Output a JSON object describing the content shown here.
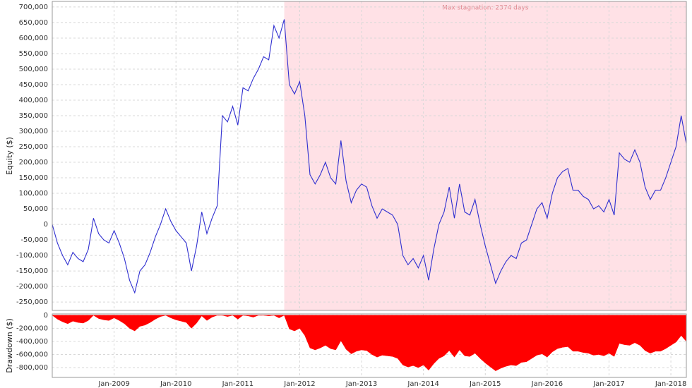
{
  "chart_data": [
    {
      "type": "line",
      "y_label": "Equity ($)",
      "x": [
        "2008-01",
        "2008-02",
        "2008-03",
        "2008-04",
        "2008-05",
        "2008-06",
        "2008-07",
        "2008-08",
        "2008-09",
        "2008-10",
        "2008-11",
        "2008-12",
        "2009-01",
        "2009-02",
        "2009-03",
        "2009-04",
        "2009-05",
        "2009-06",
        "2009-07",
        "2009-08",
        "2009-09",
        "2009-10",
        "2009-11",
        "2009-12",
        "2010-01",
        "2010-02",
        "2010-03",
        "2010-04",
        "2010-05",
        "2010-06",
        "2010-07",
        "2010-08",
        "2010-09",
        "2010-10",
        "2010-11",
        "2010-12",
        "2011-01",
        "2011-02",
        "2011-03",
        "2011-04",
        "2011-05",
        "2011-06",
        "2011-07",
        "2011-08",
        "2011-09",
        "2011-10",
        "2011-11",
        "2011-12",
        "2012-01",
        "2012-02",
        "2012-03",
        "2012-04",
        "2012-05",
        "2012-06",
        "2012-07",
        "2012-08",
        "2012-09",
        "2012-10",
        "2012-11",
        "2012-12",
        "2013-01",
        "2013-02",
        "2013-03",
        "2013-04",
        "2013-05",
        "2013-06",
        "2013-07",
        "2013-08",
        "2013-09",
        "2013-10",
        "2013-11",
        "2013-12",
        "2014-01",
        "2014-02",
        "2014-03",
        "2014-04",
        "2014-05",
        "2014-06",
        "2014-07",
        "2014-08",
        "2014-09",
        "2014-10",
        "2014-11",
        "2014-12",
        "2015-01",
        "2015-02",
        "2015-03",
        "2015-04",
        "2015-05",
        "2015-06",
        "2015-07",
        "2015-08",
        "2015-09",
        "2015-10",
        "2015-11",
        "2015-12",
        "2016-01",
        "2016-02",
        "2016-03",
        "2016-04",
        "2016-05",
        "2016-06",
        "2016-07",
        "2016-08",
        "2016-09",
        "2016-10",
        "2016-11",
        "2016-12",
        "2017-01",
        "2017-02",
        "2017-03",
        "2017-04",
        "2017-05",
        "2017-06",
        "2017-07",
        "2017-08",
        "2017-09",
        "2017-10",
        "2017-11",
        "2017-12",
        "2018-01",
        "2018-02",
        "2018-03",
        "2018-04"
      ],
      "series": [
        {
          "color": "#2f2fd0",
          "values": [
            0,
            -60000,
            -100000,
            -130000,
            -90000,
            -110000,
            -120000,
            -80000,
            20000,
            -30000,
            -50000,
            -60000,
            -20000,
            -60000,
            -110000,
            -180000,
            -220000,
            -150000,
            -130000,
            -90000,
            -40000,
            0,
            50000,
            10000,
            -20000,
            -40000,
            -60000,
            -150000,
            -70000,
            40000,
            -30000,
            20000,
            60000,
            350000,
            330000,
            380000,
            320000,
            440000,
            430000,
            470000,
            500000,
            540000,
            530000,
            640000,
            600000,
            660000,
            450000,
            420000,
            460000,
            350000,
            160000,
            130000,
            160000,
            200000,
            150000,
            130000,
            270000,
            140000,
            70000,
            110000,
            130000,
            120000,
            60000,
            20000,
            50000,
            40000,
            30000,
            0,
            -100000,
            -130000,
            -110000,
            -140000,
            -100000,
            -180000,
            -80000,
            0,
            40000,
            120000,
            20000,
            130000,
            40000,
            30000,
            80000,
            0,
            -70000,
            -130000,
            -190000,
            -150000,
            -120000,
            -100000,
            -110000,
            -60000,
            -50000,
            0,
            50000,
            70000,
            20000,
            100000,
            150000,
            170000,
            180000,
            110000,
            110000,
            90000,
            80000,
            50000,
            60000,
            40000,
            80000,
            30000,
            230000,
            210000,
            200000,
            240000,
            200000,
            120000,
            80000,
            110000,
            110000,
            150000,
            200000,
            250000,
            350000,
            260000
          ]
        }
      ],
      "xlim": [
        "2008-01",
        "2018-04"
      ],
      "xticks": [
        "2009-01",
        "2010-01",
        "2011-01",
        "2012-01",
        "2013-01",
        "2014-01",
        "2015-01",
        "2016-01",
        "2017-01",
        "2018-01"
      ],
      "ylim": [
        -277000,
        718000
      ],
      "yticks": [
        {
          "value": 700000,
          "label": "700,000"
        },
        {
          "value": 650000,
          "label": "650,000"
        },
        {
          "value": 600000,
          "label": "600,000"
        },
        {
          "value": 550000,
          "label": "550,000"
        },
        {
          "value": 500000,
          "label": "500,000"
        },
        {
          "value": 450000,
          "label": "450,000"
        },
        {
          "value": 400000,
          "label": "400,000"
        },
        {
          "value": 350000,
          "label": "350,000"
        },
        {
          "value": 300000,
          "label": "300,000"
        },
        {
          "value": 250000,
          "label": "250,000"
        },
        {
          "value": 200000,
          "label": "200,000"
        },
        {
          "value": 150000,
          "label": "150,000"
        },
        {
          "value": 100000,
          "label": "100,000"
        },
        {
          "value": 50000,
          "label": "50,000"
        },
        0,
        {
          "value": -50000,
          "label": "-50,000"
        },
        {
          "value": -100000,
          "label": "-100,000"
        },
        {
          "value": -150000,
          "label": "-150,000"
        },
        {
          "value": -200000,
          "label": "-200,000"
        },
        {
          "value": -250000,
          "label": "-250,000"
        }
      ],
      "grid": true,
      "stagnation": {
        "start": "2011-10",
        "end": "2018-04",
        "label": "Max stagnation: 2374 days",
        "color": "#ffe1e6"
      }
    },
    {
      "type": "area",
      "y_label": "Drawdown ($)",
      "x": [
        "2008-01",
        "2008-02",
        "2008-03",
        "2008-04",
        "2008-05",
        "2008-06",
        "2008-07",
        "2008-08",
        "2008-09",
        "2008-10",
        "2008-11",
        "2008-12",
        "2009-01",
        "2009-02",
        "2009-03",
        "2009-04",
        "2009-05",
        "2009-06",
        "2009-07",
        "2009-08",
        "2009-09",
        "2009-10",
        "2009-11",
        "2009-12",
        "2010-01",
        "2010-02",
        "2010-03",
        "2010-04",
        "2010-05",
        "2010-06",
        "2010-07",
        "2010-08",
        "2010-09",
        "2010-10",
        "2010-11",
        "2010-12",
        "2011-01",
        "2011-02",
        "2011-03",
        "2011-04",
        "2011-05",
        "2011-06",
        "2011-07",
        "2011-08",
        "2011-09",
        "2011-10",
        "2011-11",
        "2011-12",
        "2012-01",
        "2012-02",
        "2012-03",
        "2012-04",
        "2012-05",
        "2012-06",
        "2012-07",
        "2012-08",
        "2012-09",
        "2012-10",
        "2012-11",
        "2012-12",
        "2013-01",
        "2013-02",
        "2013-03",
        "2013-04",
        "2013-05",
        "2013-06",
        "2013-07",
        "2013-08",
        "2013-09",
        "2013-10",
        "2013-11",
        "2013-12",
        "2014-01",
        "2014-02",
        "2014-03",
        "2014-04",
        "2014-05",
        "2014-06",
        "2014-07",
        "2014-08",
        "2014-09",
        "2014-10",
        "2014-11",
        "2014-12",
        "2015-01",
        "2015-02",
        "2015-03",
        "2015-04",
        "2015-05",
        "2015-06",
        "2015-07",
        "2015-08",
        "2015-09",
        "2015-10",
        "2015-11",
        "2015-12",
        "2016-01",
        "2016-02",
        "2016-03",
        "2016-04",
        "2016-05",
        "2016-06",
        "2016-07",
        "2016-08",
        "2016-09",
        "2016-10",
        "2016-11",
        "2016-12",
        "2017-01",
        "2017-02",
        "2017-03",
        "2017-04",
        "2017-05",
        "2017-06",
        "2017-07",
        "2017-08",
        "2017-09",
        "2017-10",
        "2017-11",
        "2017-12",
        "2018-01",
        "2018-02",
        "2018-03",
        "2018-04"
      ],
      "series": [
        {
          "color": "#ff0000",
          "values": [
            0,
            -60000,
            -100000,
            -130000,
            -90000,
            -110000,
            -120000,
            -80000,
            0,
            -50000,
            -70000,
            -80000,
            -40000,
            -80000,
            -130000,
            -200000,
            -240000,
            -170000,
            -150000,
            -110000,
            -60000,
            -20000,
            0,
            -40000,
            -70000,
            -90000,
            -110000,
            -200000,
            -120000,
            -10000,
            -80000,
            -30000,
            0,
            0,
            -20000,
            0,
            -60000,
            0,
            -10000,
            -30000,
            0,
            0,
            -10000,
            0,
            -40000,
            0,
            -210000,
            -240000,
            -200000,
            -310000,
            -500000,
            -530000,
            -500000,
            -460000,
            -510000,
            -530000,
            -390000,
            -520000,
            -590000,
            -550000,
            -530000,
            -540000,
            -600000,
            -640000,
            -610000,
            -620000,
            -630000,
            -660000,
            -760000,
            -790000,
            -770000,
            -800000,
            -760000,
            -840000,
            -740000,
            -660000,
            -620000,
            -540000,
            -640000,
            -530000,
            -620000,
            -630000,
            -580000,
            -660000,
            -730000,
            -790000,
            -850000,
            -810000,
            -780000,
            -760000,
            -770000,
            -720000,
            -710000,
            -660000,
            -610000,
            -590000,
            -640000,
            -560000,
            -510000,
            -490000,
            -480000,
            -550000,
            -550000,
            -570000,
            -580000,
            -610000,
            -600000,
            -620000,
            -580000,
            -630000,
            -430000,
            -450000,
            -460000,
            -420000,
            -460000,
            -540000,
            -580000,
            -550000,
            -550000,
            -510000,
            -460000,
            -410000,
            -310000,
            -400000
          ]
        }
      ],
      "xlim": [
        "2008-01",
        "2018-04"
      ],
      "xticks": [
        {
          "value": "2009-01",
          "label": "Jan-2009"
        },
        {
          "value": "2010-01",
          "label": "Jan-2010"
        },
        {
          "value": "2011-01",
          "label": "Jan-2011"
        },
        {
          "value": "2012-01",
          "label": "Jan-2012"
        },
        {
          "value": "2013-01",
          "label": "Jan-2013"
        },
        {
          "value": "2014-01",
          "label": "Jan-2014"
        },
        {
          "value": "2015-01",
          "label": "Jan-2015"
        },
        {
          "value": "2016-01",
          "label": "Jan-2016"
        },
        {
          "value": "2017-01",
          "label": "Jan-2017"
        },
        {
          "value": "2018-01",
          "label": "Jan-2018"
        }
      ],
      "ylim": [
        -950000,
        20000
      ],
      "yticks": [
        0,
        {
          "value": -200000,
          "label": "-200,000"
        },
        {
          "value": -400000,
          "label": "-400,000"
        },
        {
          "value": -600000,
          "label": "-600,000"
        },
        {
          "value": -800000,
          "label": "-800,000"
        }
      ],
      "grid": true
    }
  ]
}
